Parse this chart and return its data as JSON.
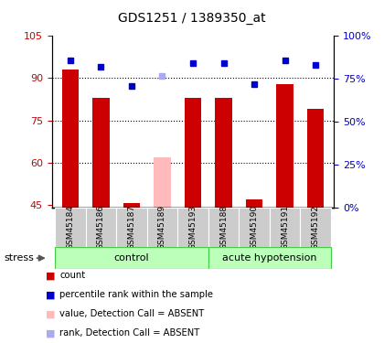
{
  "title": "GDS1251 / 1389350_at",
  "samples": [
    "GSM45184",
    "GSM45186",
    "GSM45187",
    "GSM45189",
    "GSM45193",
    "GSM45188",
    "GSM45190",
    "GSM45191",
    "GSM45192"
  ],
  "bar_values": [
    93,
    83,
    45.5,
    62,
    83,
    83,
    47,
    88,
    79
  ],
  "bar_colors": [
    "#cc0000",
    "#cc0000",
    "#cc0000",
    "#ffbbbb",
    "#cc0000",
    "#cc0000",
    "#cc0000",
    "#cc0000",
    "#cc0000"
  ],
  "rank_values": [
    86,
    82,
    71,
    77,
    84,
    84,
    72,
    86,
    83
  ],
  "rank_colors": [
    "#0000cc",
    "#0000cc",
    "#0000cc",
    "#aaaaee",
    "#0000cc",
    "#0000cc",
    "#0000cc",
    "#0000cc",
    "#0000cc"
  ],
  "absent_bar": [
    false,
    false,
    false,
    true,
    false,
    false,
    false,
    false,
    false
  ],
  "absent_rank": [
    false,
    false,
    false,
    true,
    false,
    false,
    false,
    false,
    false
  ],
  "ylim_left": [
    44,
    105
  ],
  "ylim_right": [
    0,
    100
  ],
  "yticks_left": [
    45,
    60,
    75,
    90,
    105
  ],
  "yticks_right": [
    0,
    25,
    50,
    75,
    100
  ],
  "ytick_labels_right": [
    "0%",
    "25%",
    "50%",
    "75%",
    "100%"
  ],
  "grid_lines": [
    60,
    75,
    90
  ],
  "group_label_control": "control",
  "group_label_acute": "acute hypotension",
  "stress_label": "stress",
  "red_color": "#cc0000",
  "blue_color": "#0000cc",
  "light_green": "#bbffbb",
  "dark_green": "#44cc44",
  "gray_cell": "#cccccc",
  "legend_items": [
    {
      "color": "#cc0000",
      "label": "count"
    },
    {
      "color": "#0000cc",
      "label": "percentile rank within the sample"
    },
    {
      "color": "#ffbbbb",
      "label": "value, Detection Call = ABSENT"
    },
    {
      "color": "#aaaaee",
      "label": "rank, Detection Call = ABSENT"
    }
  ]
}
